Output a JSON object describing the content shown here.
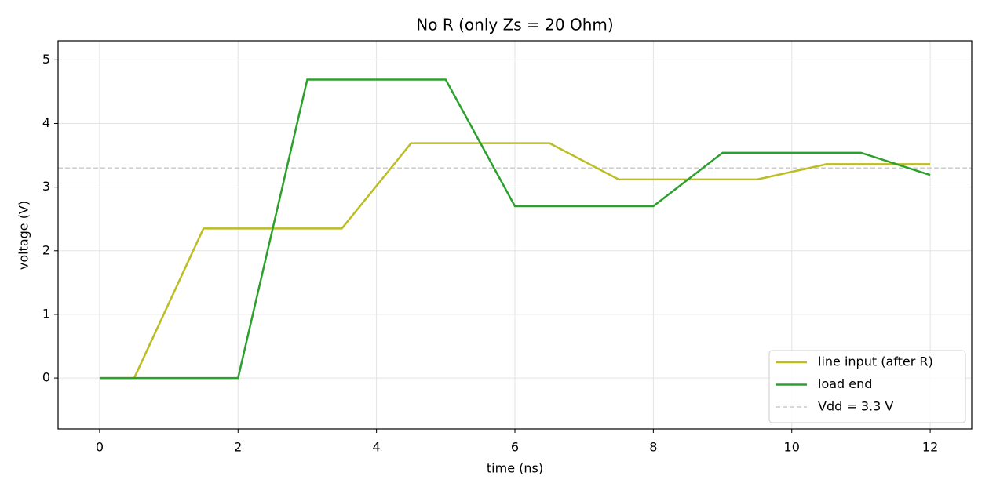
{
  "chart_data": {
    "type": "line",
    "title": "No R (only Zs = 20 Ohm)",
    "xlabel": "time (ns)",
    "ylabel": "voltage (V)",
    "series": [
      {
        "name": "line input (after R)",
        "color": "#bcbd22",
        "x": [
          0,
          0.5,
          1.5,
          3.5,
          4.5,
          6.5,
          7.5,
          9.5,
          10.5,
          12
        ],
        "values": [
          0,
          0,
          2.35,
          2.35,
          3.69,
          3.69,
          3.12,
          3.12,
          3.36,
          3.36
        ]
      },
      {
        "name": "load end",
        "color": "#2ca02c",
        "x": [
          0,
          2,
          3,
          5,
          6,
          8,
          9,
          11,
          12
        ],
        "values": [
          0,
          0,
          4.69,
          4.69,
          2.7,
          2.7,
          3.54,
          3.54,
          3.19
        ]
      }
    ],
    "hline": {
      "name": "Vdd = 3.3 V",
      "value": 3.3,
      "color": "#cccccc",
      "style": "dashed"
    },
    "xlim": [
      -0.6,
      12.6
    ],
    "ylim": [
      -0.8,
      5.3
    ],
    "xticks": [
      0,
      2,
      4,
      6,
      8,
      10,
      12
    ],
    "yticks": [
      0,
      1,
      2,
      3,
      4,
      5
    ],
    "grid": true,
    "legend": "lower right"
  }
}
